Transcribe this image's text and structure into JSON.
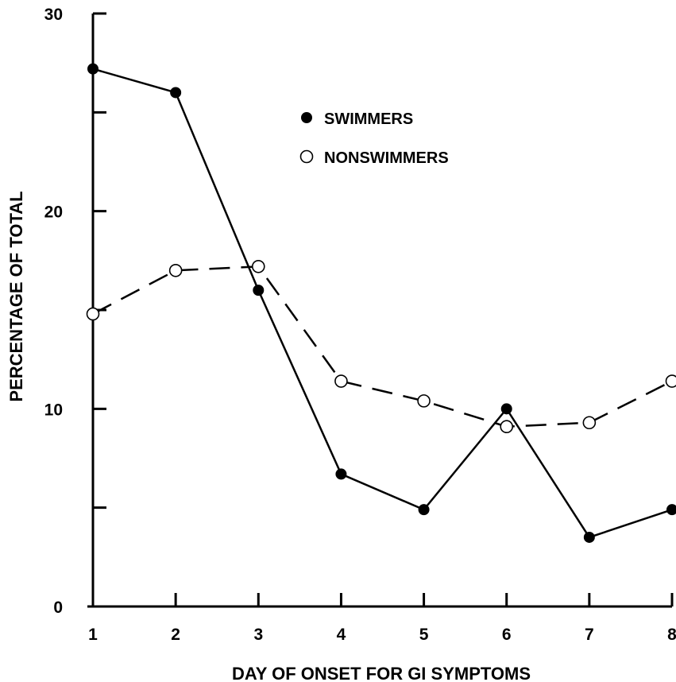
{
  "chart_data": {
    "type": "line",
    "title": "",
    "xlabel": "DAY OF ONSET FOR GI SYMPTOMS",
    "ylabel": "PERCENTAGE OF TOTAL",
    "x": [
      1,
      2,
      3,
      4,
      5,
      6,
      7,
      8
    ],
    "xticks": [
      "1",
      "2",
      "3",
      "4",
      "5",
      "6",
      "7",
      "8"
    ],
    "yticks": [
      0,
      5,
      10,
      15,
      20,
      25,
      30
    ],
    "ytick_labels": {
      "0": "0",
      "10": "10",
      "20": "20",
      "30": "30"
    },
    "ylim": [
      0,
      30
    ],
    "xlim": [
      1,
      8
    ],
    "grid": false,
    "legend_position": "top-center",
    "series": [
      {
        "name": "SWIMMERS",
        "marker": "filled-circle",
        "line": "solid",
        "color": "#000000",
        "values": [
          27.2,
          26.0,
          16.0,
          6.7,
          4.9,
          10.0,
          3.5,
          4.9
        ]
      },
      {
        "name": "NONSWIMMERS",
        "marker": "open-circle",
        "line": "dashed",
        "color": "#000000",
        "values": [
          14.8,
          17.0,
          17.2,
          11.4,
          10.4,
          9.1,
          9.3,
          11.4
        ]
      }
    ]
  }
}
